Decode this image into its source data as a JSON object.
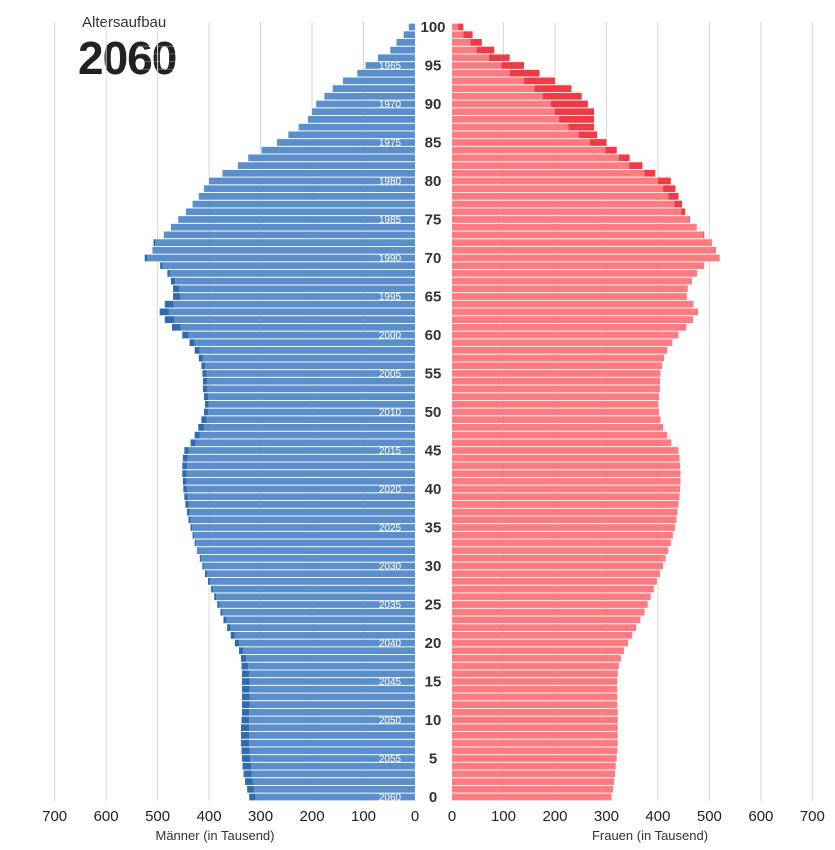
{
  "header": {
    "subtitle": "Altersaufbau",
    "year": "2060"
  },
  "chart_data": {
    "type": "bar",
    "title": "2060",
    "subtitle": "Altersaufbau",
    "orientation": "horizontal-population-pyramid",
    "y_axis": {
      "label": "",
      "range": [
        0,
        100
      ],
      "ticks": [
        0,
        5,
        10,
        15,
        20,
        25,
        30,
        35,
        40,
        45,
        50,
        55,
        60,
        65,
        70,
        75,
        80,
        85,
        90,
        95,
        100
      ]
    },
    "birth_year_labels": [
      {
        "age": 0,
        "year": "2060"
      },
      {
        "age": 5,
        "year": "2055"
      },
      {
        "age": 10,
        "year": "2050"
      },
      {
        "age": 15,
        "year": "2045"
      },
      {
        "age": 20,
        "year": "2040"
      },
      {
        "age": 25,
        "year": "2035"
      },
      {
        "age": 30,
        "year": "2030"
      },
      {
        "age": 35,
        "year": "2025"
      },
      {
        "age": 40,
        "year": "2020"
      },
      {
        "age": 45,
        "year": "2015"
      },
      {
        "age": 50,
        "year": "2010"
      },
      {
        "age": 55,
        "year": "2005"
      },
      {
        "age": 60,
        "year": "2000"
      },
      {
        "age": 65,
        "year": "1995"
      },
      {
        "age": 70,
        "year": "1990"
      },
      {
        "age": 75,
        "year": "1985"
      },
      {
        "age": 80,
        "year": "1980"
      },
      {
        "age": 85,
        "year": "1975"
      },
      {
        "age": 90,
        "year": "1970"
      },
      {
        "age": 95,
        "year": "1965"
      }
    ],
    "x_axis": {
      "ticks_left": [
        "700",
        "600",
        "500",
        "400",
        "300",
        "200",
        "100",
        "0"
      ],
      "ticks_right": [
        "0",
        "100",
        "200",
        "300",
        "400",
        "500",
        "600",
        "700"
      ],
      "range": [
        0,
        700
      ],
      "label_left": "Männer (in Tausend)",
      "label_right": "Frauen (in Tausend)"
    },
    "colors": {
      "men": "#5b8fcb",
      "men_surplus": "#2e6bb0",
      "women": "#ff7b82",
      "women_surplus": "#ee3b45",
      "grid": "#d6d6d6"
    },
    "ages": [
      0,
      1,
      2,
      3,
      4,
      5,
      6,
      7,
      8,
      9,
      10,
      11,
      12,
      13,
      14,
      15,
      16,
      17,
      18,
      19,
      20,
      21,
      22,
      23,
      24,
      25,
      26,
      27,
      28,
      29,
      30,
      31,
      32,
      33,
      34,
      35,
      36,
      37,
      38,
      39,
      40,
      41,
      42,
      43,
      44,
      45,
      46,
      47,
      48,
      49,
      50,
      51,
      52,
      53,
      54,
      55,
      56,
      57,
      58,
      59,
      60,
      61,
      62,
      63,
      64,
      65,
      66,
      67,
      68,
      69,
      70,
      71,
      72,
      73,
      74,
      75,
      76,
      77,
      78,
      79,
      80,
      81,
      82,
      83,
      84,
      85,
      86,
      87,
      88,
      89,
      90,
      91,
      92,
      93,
      94,
      95,
      96,
      97,
      98,
      99,
      100
    ],
    "series": [
      {
        "name": "Männer (in Tausend)",
        "values": [
          322,
          326,
          330,
          333,
          335,
          336,
          337,
          338,
          338,
          338,
          337,
          336,
          336,
          336,
          336,
          336,
          336,
          337,
          338,
          342,
          350,
          358,
          365,
          372,
          378,
          384,
          390,
          396,
          402,
          408,
          413,
          418,
          423,
          428,
          432,
          436,
          440,
          443,
          446,
          448,
          450,
          451,
          452,
          452,
          451,
          448,
          436,
          428,
          421,
          415,
          410,
          408,
          410,
          412,
          412,
          413,
          415,
          420,
          428,
          438,
          452,
          472,
          486,
          496,
          486,
          470,
          470,
          474,
          481,
          495,
          525,
          510,
          508,
          488,
          474,
          460,
          445,
          432,
          420,
          410,
          400,
          374,
          344,
          324,
          298,
          268,
          246,
          226,
          208,
          200,
          192,
          176,
          160,
          140,
          112,
          96,
          72,
          48,
          36,
          22,
          12
        ]
      },
      {
        "name": "Frauen (in Tausend)",
        "values": [
          310,
          313,
          315,
          317,
          318,
          320,
          321,
          322,
          322,
          322,
          322,
          322,
          321,
          321,
          321,
          321,
          322,
          324,
          328,
          334,
          342,
          350,
          358,
          366,
          374,
          380,
          386,
          392,
          398,
          404,
          410,
          415,
          420,
          425,
          429,
          433,
          436,
          438,
          440,
          442,
          443,
          444,
          444,
          443,
          442,
          440,
          426,
          418,
          410,
          405,
          402,
          401,
          402,
          404,
          404,
          405,
          408,
          412,
          418,
          428,
          440,
          455,
          468,
          478,
          469,
          456,
          458,
          466,
          476,
          490,
          520,
          512,
          505,
          490,
          475,
          462,
          453,
          447,
          440,
          434,
          425,
          395,
          370,
          345,
          320,
          300,
          282,
          276,
          276,
          276,
          264,
          252,
          232,
          200,
          170,
          140,
          112,
          82,
          58,
          40,
          22
        ]
      }
    ],
    "expected_values": {
      "note_hidden": false
    }
  }
}
